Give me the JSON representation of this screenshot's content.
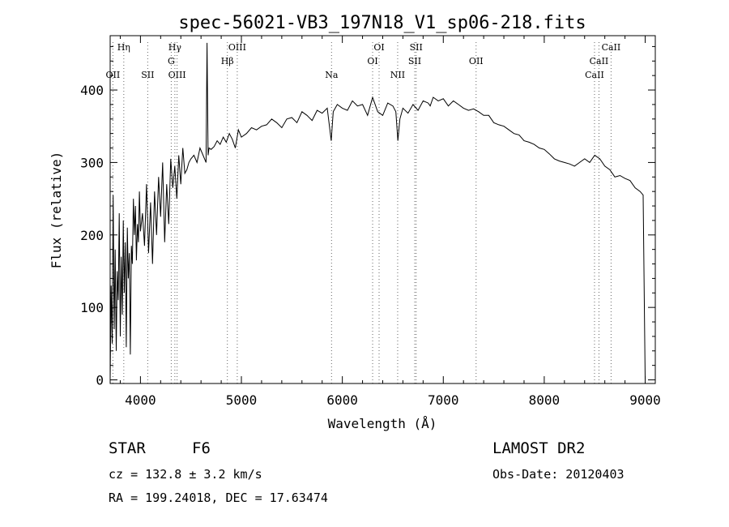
{
  "chart_data": {
    "type": "line",
    "title": "spec-56021-VB3_197N18_V1_sp06-218.fits",
    "xlabel": "Wavelength (Å)",
    "ylabel": "Flux (relative)",
    "xlim": [
      3700,
      9100
    ],
    "ylim": [
      -5,
      475
    ],
    "xticks": [
      4000,
      5000,
      6000,
      7000,
      8000,
      9000
    ],
    "yticks": [
      0,
      100,
      200,
      300,
      400
    ],
    "grid": false,
    "series": [
      {
        "x": [
          3700,
          3710,
          3720,
          3730,
          3740,
          3750,
          3760,
          3770,
          3780,
          3790,
          3800,
          3810,
          3820,
          3830,
          3840,
          3850,
          3860,
          3870,
          3880,
          3890,
          3900,
          3910,
          3920,
          3930,
          3940,
          3950,
          3960,
          3970,
          3980,
          3990,
          4000,
          4020,
          4040,
          4060,
          4080,
          4100,
          4120,
          4140,
          4160,
          4180,
          4200,
          4220,
          4240,
          4260,
          4280,
          4300,
          4320,
          4340,
          4360,
          4380,
          4400,
          4420,
          4440,
          4460,
          4480,
          4500,
          4530,
          4560,
          4590,
          4620,
          4650,
          4660,
          4670,
          4680,
          4700,
          4730,
          4760,
          4790,
          4820,
          4850,
          4880,
          4910,
          4940,
          4970,
          5000,
          5050,
          5100,
          5150,
          5200,
          5250,
          5300,
          5350,
          5400,
          5450,
          5500,
          5550,
          5600,
          5650,
          5700,
          5750,
          5800,
          5850,
          5890,
          5910,
          5950,
          6000,
          6050,
          6100,
          6150,
          6200,
          6250,
          6300,
          6350,
          6400,
          6450,
          6500,
          6530,
          6550,
          6570,
          6600,
          6650,
          6700,
          6750,
          6800,
          6850,
          6870,
          6900,
          6950,
          7000,
          7050,
          7100,
          7150,
          7200,
          7250,
          7300,
          7350,
          7400,
          7450,
          7500,
          7550,
          7600,
          7650,
          7700,
          7750,
          7800,
          7850,
          7900,
          7950,
          8000,
          8050,
          8100,
          8150,
          8200,
          8250,
          8300,
          8350,
          8400,
          8450,
          8500,
          8550,
          8600,
          8650,
          8700,
          8750,
          8800,
          8850,
          8900,
          8950,
          8980,
          9000
        ],
        "values": [
          0,
          130,
          50,
          255,
          70,
          180,
          40,
          150,
          110,
          230,
          60,
          170,
          90,
          220,
          120,
          190,
          45,
          210,
          140,
          175,
          35,
          185,
          160,
          250,
          200,
          240,
          165,
          215,
          190,
          260,
          205,
          230,
          185,
          270,
          175,
          245,
          160,
          260,
          200,
          280,
          225,
          300,
          190,
          270,
          215,
          305,
          265,
          295,
          250,
          310,
          270,
          320,
          285,
          290,
          300,
          305,
          310,
          300,
          320,
          310,
          300,
          465,
          310,
          320,
          318,
          322,
          330,
          325,
          335,
          328,
          340,
          332,
          320,
          345,
          335,
          340,
          348,
          345,
          350,
          352,
          360,
          355,
          348,
          360,
          362,
          355,
          370,
          365,
          358,
          372,
          368,
          375,
          330,
          370,
          380,
          375,
          372,
          385,
          378,
          380,
          365,
          390,
          370,
          365,
          382,
          378,
          370,
          330,
          360,
          375,
          368,
          380,
          372,
          385,
          382,
          378,
          390,
          385,
          388,
          378,
          385,
          380,
          375,
          372,
          374,
          370,
          365,
          365,
          355,
          352,
          350,
          345,
          340,
          338,
          330,
          328,
          325,
          320,
          318,
          312,
          305,
          302,
          300,
          298,
          295,
          300,
          305,
          300,
          310,
          305,
          295,
          290,
          280,
          282,
          278,
          275,
          265,
          260,
          255,
          0
        ]
      }
    ],
    "line_ids": [
      {
        "label": "Hη",
        "x": 3835,
        "row": 1
      },
      {
        "label": "OII",
        "x": 3727,
        "row": 3
      },
      {
        "label": "SII",
        "x": 4072,
        "row": 3
      },
      {
        "label": "Hγ",
        "x": 4341,
        "row": 1
      },
      {
        "label": "G",
        "x": 4305,
        "row": 2
      },
      {
        "label": "OIII",
        "x": 4363,
        "row": 3
      },
      {
        "label": "OIII",
        "x": 4959,
        "row": 1
      },
      {
        "label": "Hβ",
        "x": 4861,
        "row": 2
      },
      {
        "label": "Na",
        "x": 5893,
        "row": 3
      },
      {
        "label": "OI",
        "x": 6364,
        "row": 1
      },
      {
        "label": "OI",
        "x": 6300,
        "row": 2
      },
      {
        "label": "NII",
        "x": 6548,
        "row": 3
      },
      {
        "label": "SII",
        "x": 6731,
        "row": 1
      },
      {
        "label": "SII",
        "x": 6717,
        "row": 2
      },
      {
        "label": "OII",
        "x": 7325,
        "row": 2
      },
      {
        "label": "CaII",
        "x": 8662,
        "row": 1
      },
      {
        "label": "CaII",
        "x": 8542,
        "row": 2
      },
      {
        "label": "CaII",
        "x": 8498,
        "row": 3
      }
    ]
  },
  "info": {
    "object_class": "STAR",
    "subclass": "F6",
    "survey": "LAMOST DR2",
    "cz": "cz = 132.8 ± 3.2 km/s",
    "obs_date": "Obs-Date: 20120403",
    "coords": "RA = 199.24018, DEC =  17.63474"
  }
}
